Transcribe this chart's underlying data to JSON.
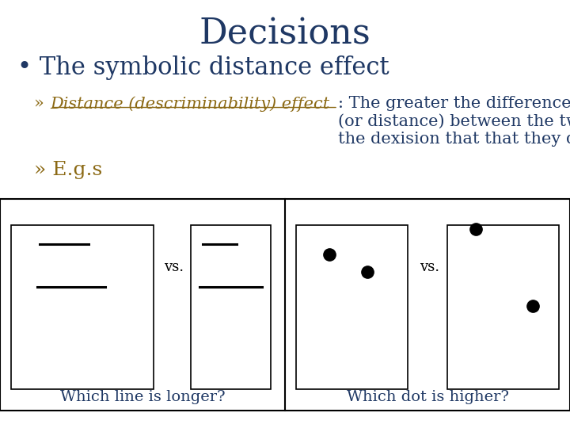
{
  "title": "Decisions",
  "title_color": "#1F3864",
  "title_fontsize": 32,
  "bullet1": "The symbolic distance effect",
  "bullet1_color": "#1F3864",
  "bullet1_fontsize": 22,
  "sub1_label": "Distance (descriminability) effect",
  "sub1_label_color": "#8B6914",
  "sub1_text": ": The greater the difference\n(or distance) between the two stimuli being compared, the faster\nthe dexision that that they differ.",
  "sub1_text_color": "#1F3864",
  "sub1_fontsize": 15,
  "sub2": "E.g.s",
  "sub2_color": "#8B6914",
  "sub2_fontsize": 18,
  "caption_left": "Which line is longer?",
  "caption_right": "Which dot is higher?",
  "caption_color": "#1F3864",
  "caption_fontsize": 14,
  "background_color": "#FFFFFF",
  "box_color": "#000000",
  "line_color": "#000000",
  "dot_color": "#000000"
}
